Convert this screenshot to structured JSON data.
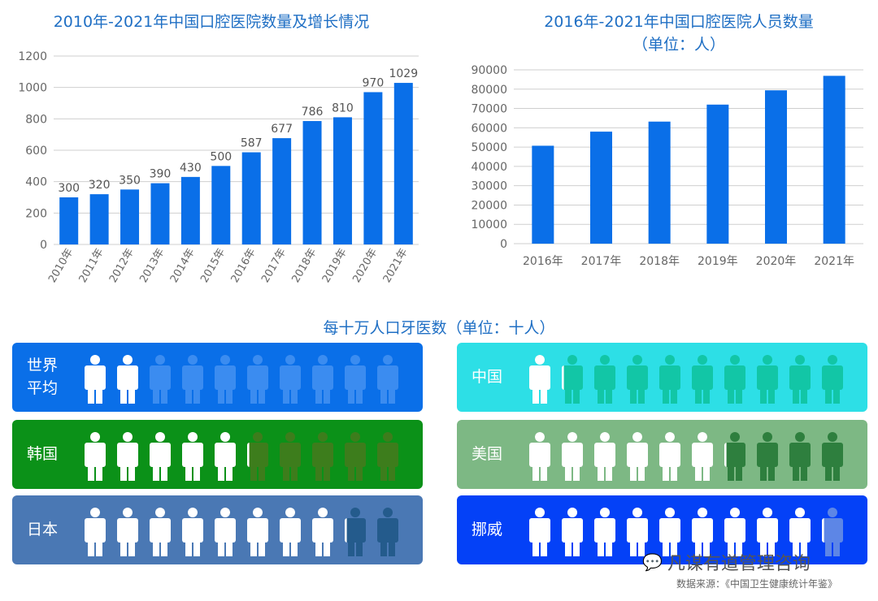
{
  "chart_data": [
    {
      "type": "bar",
      "title": "2010年-2021年中国口腔医院数量及增长情况",
      "categories": [
        "2010年",
        "2011年",
        "2012年",
        "2013年",
        "2014年",
        "2015年",
        "2016年",
        "2017年",
        "2018年",
        "2019年",
        "2020年",
        "2021年"
      ],
      "values": [
        300,
        320,
        350,
        390,
        430,
        500,
        587,
        677,
        786,
        810,
        970,
        1029
      ],
      "yticks": [
        0,
        200,
        400,
        600,
        800,
        1000,
        1200
      ],
      "ylim": [
        0,
        1200
      ],
      "grid": true,
      "data_labels": true,
      "color": "#0a6fe8"
    },
    {
      "type": "bar",
      "title": "2016年-2021年中国口腔医院人员数量",
      "subtitle": "（单位：人）",
      "categories": [
        "2016年",
        "2017年",
        "2018年",
        "2019年",
        "2020年",
        "2021年"
      ],
      "values": [
        50700,
        58000,
        63200,
        72000,
        79400,
        86900
      ],
      "yticks": [
        0,
        10000,
        20000,
        30000,
        40000,
        50000,
        60000,
        70000,
        80000,
        90000
      ],
      "ylim": [
        0,
        90000
      ],
      "grid": true,
      "color": "#0a6fe8"
    },
    {
      "type": "pictogram",
      "title": "每十万人口牙医数（单位：十人）",
      "max_icons": 10,
      "series": [
        {
          "name": "世界\n平均",
          "value": 2.0,
          "bg": "#0a6fe8",
          "faded": "#3b8cf0"
        },
        {
          "name": "中国",
          "value": 1.1,
          "bg": "#2ddfe6",
          "faded": "#12c6a6"
        },
        {
          "name": "韩国",
          "value": 5.1,
          "bg": "#0b9118",
          "faded": "#3d7d1c"
        },
        {
          "name": "美国",
          "value": 6.1,
          "bg": "#7db884",
          "faded": "#2e7f3e"
        },
        {
          "name": "日本",
          "value": 8.1,
          "bg": "#4a78b4",
          "faded": "#245b8c"
        },
        {
          "name": "挪威",
          "value": 9.1,
          "bg": "#0441f7",
          "faded": "#5d86e6"
        }
      ]
    }
  ],
  "watermark": "凡谋有道管理咨询",
  "source": "数据来源：《中国卫生健康统计年鉴》"
}
